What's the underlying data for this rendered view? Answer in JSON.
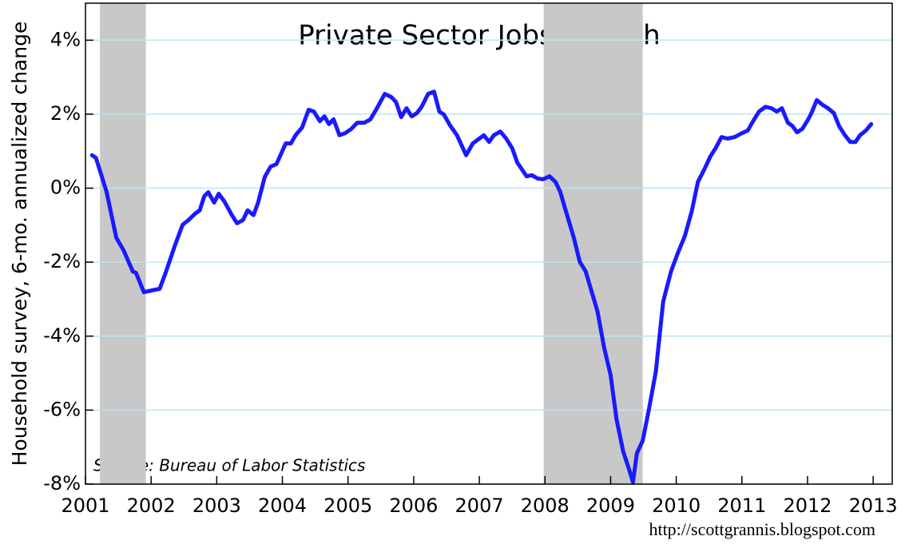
{
  "chart_data": {
    "type": "line",
    "title": "Private Sector Jobs Growth",
    "ylabel": "Household survey, 6-mo. annualized change",
    "annotation": "Source: Bureau of Labor Statistics",
    "credit": "http://scottgrannis.blogspot.com",
    "color": "#1a1aff",
    "shade_color": "#c8c8c8",
    "grid_color": "#bfe3f2",
    "grid": true,
    "recessions": [
      [
        2001.22,
        2001.92
      ],
      [
        2007.98,
        2009.49
      ]
    ],
    "xlim": [
      2001,
      2013.29
    ],
    "xticks": [
      2001,
      2002,
      2003,
      2004,
      2005,
      2006,
      2007,
      2008,
      2009,
      2010,
      2011,
      2012,
      2013
    ],
    "ylim": [
      -8,
      5
    ],
    "yticks": [
      {
        "value": -8,
        "label": "-8%"
      },
      {
        "value": -6,
        "label": "-6%"
      },
      {
        "value": -4,
        "label": "-4%"
      },
      {
        "value": -2,
        "label": "-2%"
      },
      {
        "value": 0,
        "label": "0%"
      },
      {
        "value": 2,
        "label": "2%"
      },
      {
        "value": 4,
        "label": "4%"
      }
    ],
    "x": [
      2001.1,
      2001.16,
      2001.32,
      2001.47,
      2001.58,
      2001.72,
      2001.77,
      2001.89,
      2002.13,
      2002.22,
      2002.36,
      2002.48,
      2002.57,
      2002.67,
      2002.74,
      2002.81,
      2002.87,
      2002.96,
      2003.03,
      2003.12,
      2003.23,
      2003.31,
      2003.4,
      2003.47,
      2003.56,
      2003.63,
      2003.73,
      2003.82,
      2003.91,
      2003.97,
      2004.05,
      2004.13,
      2004.2,
      2004.3,
      2004.4,
      2004.48,
      2004.57,
      2004.64,
      2004.71,
      2004.78,
      2004.87,
      2004.96,
      2005.05,
      2005.14,
      2005.25,
      2005.34,
      2005.44,
      2005.56,
      2005.66,
      2005.73,
      2005.81,
      2005.89,
      2005.97,
      2006.05,
      2006.12,
      2006.22,
      2006.31,
      2006.39,
      2006.46,
      2006.55,
      2006.66,
      2006.8,
      2006.9,
      2007.07,
      2007.15,
      2007.22,
      2007.32,
      2007.41,
      2007.5,
      2007.58,
      2007.72,
      2007.8,
      2007.89,
      2007.97,
      2008.07,
      2008.16,
      2008.23,
      2008.33,
      2008.44,
      2008.53,
      2008.62,
      2008.72,
      2008.8,
      2008.9,
      2009.0,
      2009.09,
      2009.19,
      2009.29,
      2009.34,
      2009.4,
      2009.49,
      2009.59,
      2009.69,
      2009.8,
      2009.92,
      2010.02,
      2010.13,
      2010.24,
      2010.33,
      2010.43,
      2010.52,
      2010.6,
      2010.69,
      2010.78,
      2010.89,
      2010.98,
      2011.09,
      2011.17,
      2011.26,
      2011.36,
      2011.45,
      2011.53,
      2011.61,
      2011.7,
      2011.77,
      2011.84,
      2011.92,
      2012.01,
      2012.06,
      2012.14,
      2012.23,
      2012.31,
      2012.4,
      2012.48,
      2012.57,
      2012.65,
      2012.73,
      2012.8,
      2012.89,
      2012.97
    ],
    "values": [
      0.89,
      0.82,
      -0.09,
      -1.34,
      -1.68,
      -2.25,
      -2.29,
      -2.81,
      -2.72,
      -2.29,
      -1.56,
      -0.99,
      -0.86,
      -0.69,
      -0.6,
      -0.22,
      -0.11,
      -0.39,
      -0.15,
      -0.37,
      -0.73,
      -0.95,
      -0.86,
      -0.6,
      -0.73,
      -0.39,
      0.3,
      0.58,
      0.65,
      0.89,
      1.21,
      1.21,
      1.43,
      1.64,
      2.12,
      2.07,
      1.81,
      1.94,
      1.73,
      1.86,
      1.43,
      1.49,
      1.6,
      1.77,
      1.77,
      1.86,
      2.16,
      2.55,
      2.46,
      2.33,
      1.92,
      2.16,
      1.94,
      2.03,
      2.2,
      2.55,
      2.61,
      2.07,
      1.99,
      1.71,
      1.43,
      0.89,
      1.21,
      1.43,
      1.25,
      1.43,
      1.53,
      1.34,
      1.08,
      0.69,
      0.32,
      0.35,
      0.26,
      0.24,
      0.32,
      0.17,
      -0.09,
      -0.69,
      -1.34,
      -1.99,
      -2.25,
      -2.85,
      -3.33,
      -4.3,
      -5.05,
      -6.24,
      -7.11,
      -7.65,
      -7.95,
      -7.17,
      -6.82,
      -5.92,
      -4.95,
      -3.07,
      -2.25,
      -1.77,
      -1.3,
      -0.6,
      0.17,
      0.52,
      0.86,
      1.08,
      1.38,
      1.34,
      1.38,
      1.47,
      1.56,
      1.81,
      2.07,
      2.2,
      2.16,
      2.07,
      2.16,
      1.77,
      1.68,
      1.51,
      1.6,
      1.86,
      2.03,
      2.38,
      2.25,
      2.16,
      2.03,
      1.68,
      1.43,
      1.25,
      1.25,
      1.43,
      1.56,
      1.73
    ]
  }
}
